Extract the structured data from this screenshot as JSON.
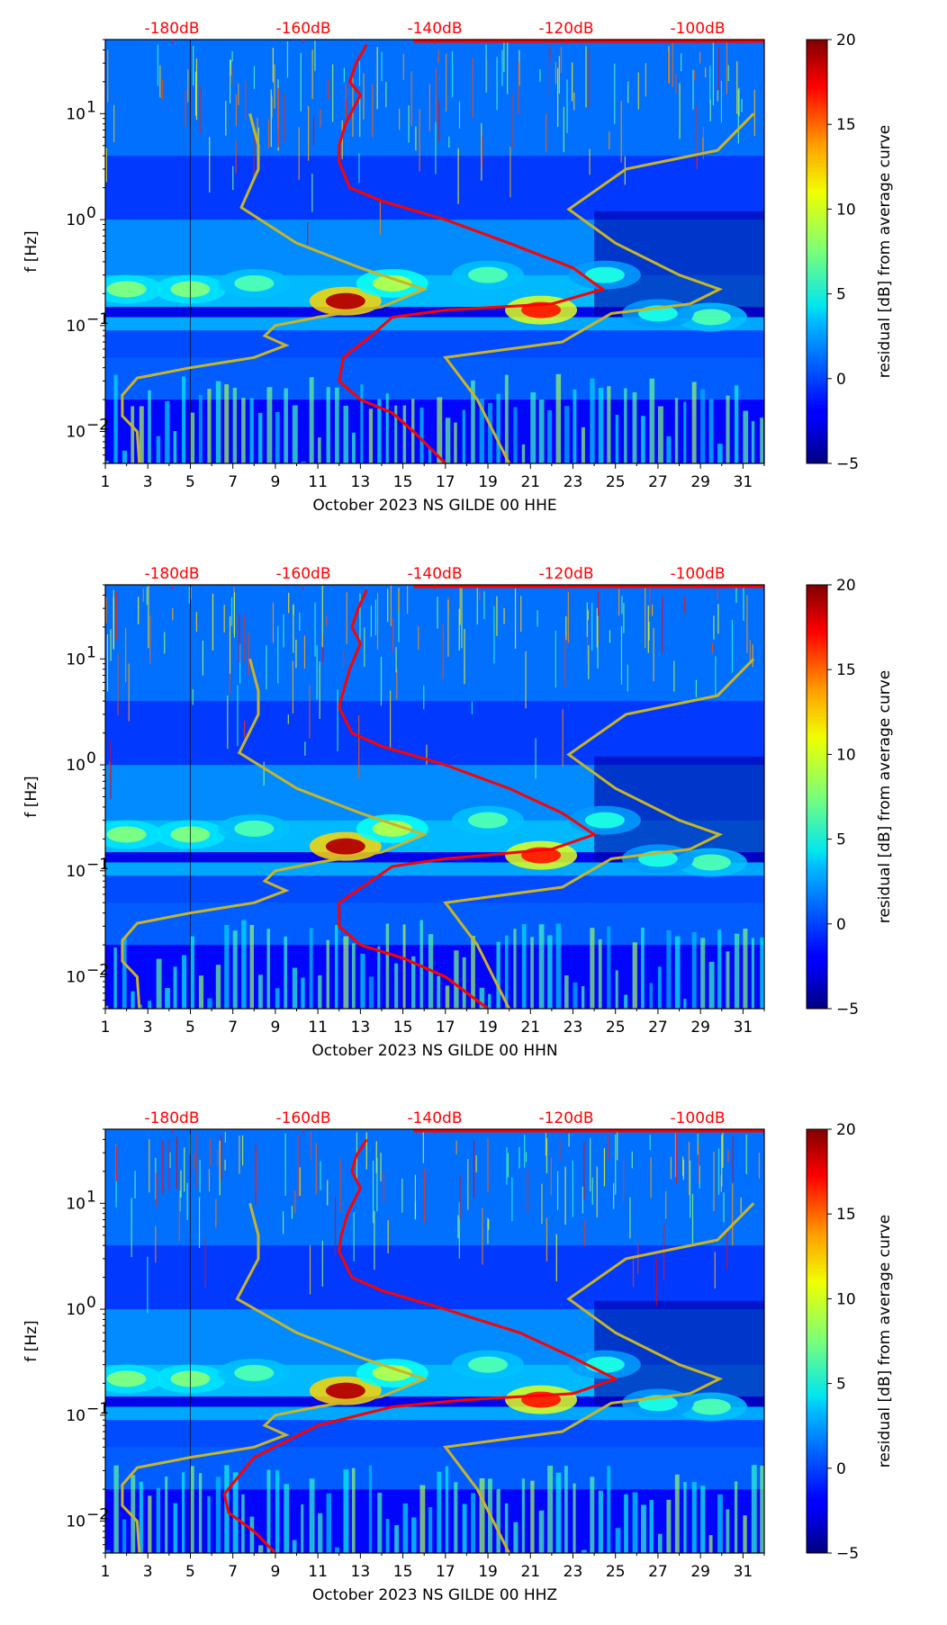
{
  "chart_data": [
    {
      "type": "heatmap",
      "xlabel": "October 2023 NS GILDE 00 HHE",
      "ylabel": "f [Hz]",
      "x_ticks": [
        "1",
        "3",
        "5",
        "7",
        "9",
        "11",
        "13",
        "15",
        "17",
        "19",
        "21",
        "23",
        "25",
        "27",
        "29",
        "31"
      ],
      "xlim": [
        1,
        32
      ],
      "y_scale": "log",
      "ylim": [
        0.005,
        50
      ],
      "y_ticks": [
        {
          "label": "10",
          "exp": "1",
          "value": 10
        },
        {
          "label": "10",
          "exp": "0",
          "value": 1
        },
        {
          "label": "10",
          "exp": "−1",
          "value": 0.1
        },
        {
          "label": "10",
          "exp": "−2",
          "value": 0.01
        }
      ],
      "top_axis_ticks": [
        "-180dB",
        "-160dB",
        "-140dB",
        "-120dB",
        "-100dB"
      ],
      "top_axis_color": "#ff0000",
      "colorbar": {
        "label": "residual [dB] from average curve",
        "range": [
          -5,
          20
        ],
        "ticks": [
          "20",
          "15",
          "10",
          "5",
          "0",
          "−5"
        ],
        "colormap": "jet"
      },
      "series": [
        {
          "color": "#ff0000",
          "points": [
            [
              14.0,
              40
            ],
            [
              15.2,
              45
            ],
            [
              16,
              48
            ],
            [
              31.5,
              48
            ]
          ],
          "profile": [
            [
              13.3,
              45
            ],
            [
              12.8,
              30
            ],
            [
              12.5,
              20
            ],
            [
              13.0,
              15
            ],
            [
              12.3,
              8
            ],
            [
              12.0,
              5
            ],
            [
              12.0,
              3.5
            ],
            [
              12.5,
              2
            ],
            [
              14,
              1.5
            ],
            [
              17,
              1.0
            ],
            [
              20,
              0.6
            ],
            [
              23,
              0.35
            ],
            [
              24.4,
              0.22
            ],
            [
              22,
              0.16
            ],
            [
              17,
              0.14
            ],
            [
              14.5,
              0.12
            ],
            [
              13.5,
              0.08
            ],
            [
              12.2,
              0.05
            ],
            [
              12.0,
              0.03
            ],
            [
              13,
              0.02
            ],
            [
              14.5,
              0.015
            ],
            [
              15.5,
              0.01
            ],
            [
              17,
              0.005
            ]
          ]
        },
        {
          "color": "#c8b428",
          "profile": [
            [
              7.8,
              10
            ],
            [
              8.2,
              5
            ],
            [
              8.2,
              3
            ],
            [
              7.4,
              1.3
            ],
            [
              10,
              0.6
            ],
            [
              13,
              0.35
            ],
            [
              16,
              0.22
            ],
            [
              14,
              0.15
            ],
            [
              11,
              0.12
            ],
            [
              9,
              0.1
            ],
            [
              8.5,
              0.08
            ],
            [
              9.5,
              0.065
            ],
            [
              8,
              0.05
            ],
            [
              5,
              0.04
            ],
            [
              2.5,
              0.032
            ],
            [
              1.8,
              0.022
            ],
            [
              1.8,
              0.014
            ],
            [
              2.5,
              0.01
            ],
            [
              2.6,
              0.005
            ]
          ]
        },
        {
          "color": "#c8b428",
          "profile": [
            [
              31.5,
              10
            ],
            [
              29.8,
              4.5
            ],
            [
              25.5,
              3
            ],
            [
              22.8,
              1.25
            ],
            [
              25,
              0.6
            ],
            [
              28,
              0.3
            ],
            [
              29.9,
              0.22
            ],
            [
              28.5,
              0.16
            ],
            [
              24.8,
              0.13
            ],
            [
              22.5,
              0.07
            ],
            [
              17,
              0.05
            ],
            [
              18.5,
              0.02
            ],
            [
              20,
              0.005
            ]
          ]
        }
      ]
    },
    {
      "type": "heatmap",
      "xlabel": "October 2023 NS GILDE 00 HHN",
      "ylabel": "f [Hz]",
      "x_ticks": [
        "1",
        "3",
        "5",
        "7",
        "9",
        "11",
        "13",
        "15",
        "17",
        "19",
        "21",
        "23",
        "25",
        "27",
        "29",
        "31"
      ],
      "xlim": [
        1,
        32
      ],
      "y_scale": "log",
      "ylim": [
        0.005,
        50
      ],
      "y_ticks": [
        {
          "label": "10",
          "exp": "1",
          "value": 10
        },
        {
          "label": "10",
          "exp": "0",
          "value": 1
        },
        {
          "label": "10",
          "exp": "−1",
          "value": 0.1
        },
        {
          "label": "10",
          "exp": "−2",
          "value": 0.01
        }
      ],
      "top_axis_ticks": [
        "-180dB",
        "-160dB",
        "-140dB",
        "-120dB",
        "-100dB"
      ],
      "top_axis_color": "#ff0000",
      "colorbar": {
        "label": "residual [dB] from average curve",
        "range": [
          -5,
          20
        ],
        "ticks": [
          "20",
          "15",
          "10",
          "5",
          "0",
          "−5"
        ],
        "colormap": "jet"
      },
      "series": [
        {
          "color": "#ff0000",
          "profile": [
            [
              13.3,
              45
            ],
            [
              12.9,
              30
            ],
            [
              12.6,
              20
            ],
            [
              13.0,
              14
            ],
            [
              12.5,
              8
            ],
            [
              12.2,
              5
            ],
            [
              12.0,
              3.5
            ],
            [
              12.6,
              2
            ],
            [
              14,
              1.5
            ],
            [
              17,
              1.0
            ],
            [
              20,
              0.6
            ],
            [
              22.5,
              0.35
            ],
            [
              24,
              0.22
            ],
            [
              22,
              0.16
            ],
            [
              17,
              0.13
            ],
            [
              14.5,
              0.11
            ],
            [
              13.5,
              0.08
            ],
            [
              12.0,
              0.05
            ],
            [
              12.0,
              0.03
            ],
            [
              13,
              0.02
            ],
            [
              15,
              0.015
            ],
            [
              17,
              0.01
            ],
            [
              19,
              0.005
            ]
          ]
        },
        {
          "color": "#c8b428",
          "profile": [
            [
              7.8,
              10
            ],
            [
              8.2,
              5
            ],
            [
              8.2,
              3
            ],
            [
              7.3,
              1.3
            ],
            [
              10,
              0.6
            ],
            [
              13,
              0.35
            ],
            [
              16,
              0.22
            ],
            [
              14,
              0.15
            ],
            [
              11,
              0.12
            ],
            [
              9,
              0.1
            ],
            [
              8.5,
              0.08
            ],
            [
              9.5,
              0.065
            ],
            [
              8,
              0.05
            ],
            [
              5,
              0.04
            ],
            [
              2.5,
              0.032
            ],
            [
              1.8,
              0.022
            ],
            [
              1.8,
              0.014
            ],
            [
              2.5,
              0.01
            ],
            [
              2.6,
              0.005
            ]
          ]
        },
        {
          "color": "#c8b428",
          "profile": [
            [
              31.5,
              10
            ],
            [
              29.8,
              4.5
            ],
            [
              25.5,
              3
            ],
            [
              22.8,
              1.25
            ],
            [
              25,
              0.6
            ],
            [
              28,
              0.3
            ],
            [
              29.9,
              0.22
            ],
            [
              28.5,
              0.16
            ],
            [
              24.8,
              0.13
            ],
            [
              22.5,
              0.07
            ],
            [
              17,
              0.05
            ],
            [
              18.5,
              0.02
            ],
            [
              20,
              0.005
            ]
          ]
        }
      ]
    },
    {
      "type": "heatmap",
      "xlabel": "October 2023 NS GILDE 00 HHZ",
      "ylabel": "f [Hz]",
      "x_ticks": [
        "1",
        "3",
        "5",
        "7",
        "9",
        "11",
        "13",
        "15",
        "17",
        "19",
        "21",
        "23",
        "25",
        "27",
        "29",
        "31"
      ],
      "xlim": [
        1,
        32
      ],
      "y_scale": "log",
      "ylim": [
        0.005,
        50
      ],
      "y_ticks": [
        {
          "label": "10",
          "exp": "1",
          "value": 10
        },
        {
          "label": "10",
          "exp": "0",
          "value": 1
        },
        {
          "label": "10",
          "exp": "−1",
          "value": 0.1
        },
        {
          "label": "10",
          "exp": "−2",
          "value": 0.01
        }
      ],
      "top_axis_ticks": [
        "-180dB",
        "-160dB",
        "-140dB",
        "-120dB",
        "-100dB"
      ],
      "top_axis_color": "#ff0000",
      "colorbar": {
        "label": "residual [dB] from average curve",
        "range": [
          -5,
          20
        ],
        "ticks": [
          "20",
          "15",
          "10",
          "5",
          "0",
          "−5"
        ],
        "colormap": "jet"
      },
      "series": [
        {
          "color": "#ff0000",
          "profile": [
            [
              13.3,
              40
            ],
            [
              12.8,
              28
            ],
            [
              12.6,
              20
            ],
            [
              13.0,
              14
            ],
            [
              12.4,
              8
            ],
            [
              12.1,
              5
            ],
            [
              12.0,
              3.5
            ],
            [
              12.6,
              2
            ],
            [
              14,
              1.5
            ],
            [
              17,
              1.0
            ],
            [
              20.5,
              0.6
            ],
            [
              23,
              0.35
            ],
            [
              25,
              0.22
            ],
            [
              23,
              0.16
            ],
            [
              18,
              0.14
            ],
            [
              14.5,
              0.12
            ],
            [
              11,
              0.08
            ],
            [
              8,
              0.04
            ],
            [
              6.6,
              0.018
            ],
            [
              6.8,
              0.012
            ],
            [
              8,
              0.008
            ],
            [
              9,
              0.005
            ]
          ]
        },
        {
          "color": "#c8b428",
          "profile": [
            [
              7.8,
              10
            ],
            [
              8.2,
              5
            ],
            [
              8.2,
              3
            ],
            [
              7.2,
              1.25
            ],
            [
              10,
              0.6
            ],
            [
              13,
              0.35
            ],
            [
              16,
              0.22
            ],
            [
              14,
              0.15
            ],
            [
              11,
              0.12
            ],
            [
              9,
              0.1
            ],
            [
              8.5,
              0.08
            ],
            [
              9.5,
              0.065
            ],
            [
              8,
              0.05
            ],
            [
              5,
              0.04
            ],
            [
              2.5,
              0.032
            ],
            [
              1.8,
              0.022
            ],
            [
              1.8,
              0.014
            ],
            [
              2.5,
              0.01
            ],
            [
              2.6,
              0.005
            ]
          ]
        },
        {
          "color": "#c8b428",
          "profile": [
            [
              31.5,
              10
            ],
            [
              29.8,
              4.5
            ],
            [
              25.5,
              3
            ],
            [
              22.8,
              1.25
            ],
            [
              25,
              0.6
            ],
            [
              28,
              0.3
            ],
            [
              29.9,
              0.22
            ],
            [
              28.5,
              0.16
            ],
            [
              24.8,
              0.13
            ],
            [
              22.5,
              0.07
            ],
            [
              17,
              0.05
            ],
            [
              18.5,
              0.02
            ],
            [
              20,
              0.005
            ]
          ]
        }
      ]
    }
  ]
}
